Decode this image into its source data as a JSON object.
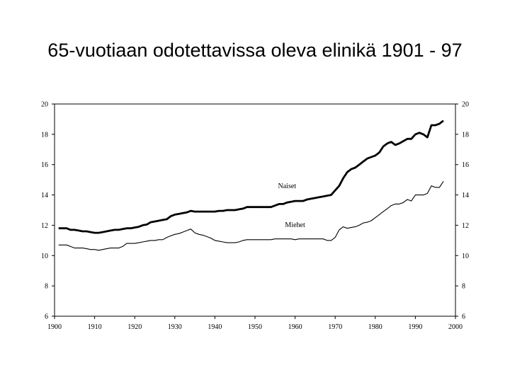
{
  "slide": {
    "title": "65-vuotiaan odotettavissa oleva elinikä 1901 - 97"
  },
  "chart_data": {
    "type": "line",
    "xlim": [
      1900,
      2000
    ],
    "ylim": [
      6,
      20
    ],
    "x_ticks": [
      1900,
      1910,
      1920,
      1930,
      1940,
      1950,
      1960,
      1970,
      1980,
      1990,
      2000
    ],
    "y_ticks": [
      6,
      8,
      10,
      12,
      14,
      16,
      18,
      20
    ],
    "grid": false,
    "series": [
      {
        "name": "Naiset",
        "color": "#000000",
        "weight": "bold",
        "x": [
          1901,
          1902,
          1903,
          1904,
          1905,
          1906,
          1907,
          1908,
          1909,
          1910,
          1911,
          1912,
          1913,
          1914,
          1915,
          1916,
          1917,
          1918,
          1919,
          1920,
          1921,
          1922,
          1923,
          1924,
          1925,
          1926,
          1927,
          1928,
          1929,
          1930,
          1931,
          1932,
          1933,
          1934,
          1935,
          1936,
          1937,
          1938,
          1939,
          1940,
          1941,
          1942,
          1943,
          1944,
          1945,
          1946,
          1947,
          1948,
          1949,
          1950,
          1951,
          1952,
          1953,
          1954,
          1955,
          1956,
          1957,
          1958,
          1959,
          1960,
          1961,
          1962,
          1963,
          1964,
          1965,
          1966,
          1967,
          1968,
          1969,
          1970,
          1971,
          1972,
          1973,
          1974,
          1975,
          1976,
          1977,
          1978,
          1979,
          1980,
          1981,
          1982,
          1983,
          1984,
          1985,
          1986,
          1987,
          1988,
          1989,
          1990,
          1991,
          1992,
          1993,
          1994,
          1995,
          1996,
          1997
        ],
        "y": [
          11.8,
          11.8,
          11.8,
          11.7,
          11.7,
          11.65,
          11.6,
          11.6,
          11.55,
          11.5,
          11.5,
          11.55,
          11.6,
          11.65,
          11.7,
          11.7,
          11.75,
          11.8,
          11.8,
          11.85,
          11.9,
          12.0,
          12.05,
          12.2,
          12.25,
          12.3,
          12.35,
          12.4,
          12.6,
          12.7,
          12.75,
          12.8,
          12.85,
          12.95,
          12.9,
          12.9,
          12.9,
          12.9,
          12.9,
          12.9,
          12.95,
          12.95,
          13.0,
          13.0,
          13.0,
          13.05,
          13.1,
          13.2,
          13.2,
          13.2,
          13.2,
          13.2,
          13.2,
          13.2,
          13.3,
          13.4,
          13.4,
          13.5,
          13.55,
          13.6,
          13.6,
          13.6,
          13.7,
          13.75,
          13.8,
          13.85,
          13.9,
          13.95,
          14.0,
          14.3,
          14.6,
          15.1,
          15.5,
          15.7,
          15.8,
          16.0,
          16.2,
          16.4,
          16.5,
          16.6,
          16.8,
          17.2,
          17.4,
          17.5,
          17.3,
          17.4,
          17.55,
          17.7,
          17.7,
          18.0,
          18.1,
          18.0,
          17.8,
          18.6,
          18.6,
          18.7,
          18.9
        ]
      },
      {
        "name": "Miehet",
        "color": "#000000",
        "weight": "thin",
        "x": [
          1901,
          1902,
          1903,
          1904,
          1905,
          1906,
          1907,
          1908,
          1909,
          1910,
          1911,
          1912,
          1913,
          1914,
          1915,
          1916,
          1917,
          1918,
          1919,
          1920,
          1921,
          1922,
          1923,
          1924,
          1925,
          1926,
          1927,
          1928,
          1929,
          1930,
          1931,
          1932,
          1933,
          1934,
          1935,
          1936,
          1937,
          1938,
          1939,
          1940,
          1941,
          1942,
          1943,
          1944,
          1945,
          1946,
          1947,
          1948,
          1949,
          1950,
          1951,
          1952,
          1953,
          1954,
          1955,
          1956,
          1957,
          1958,
          1959,
          1960,
          1961,
          1962,
          1963,
          1964,
          1965,
          1966,
          1967,
          1968,
          1969,
          1970,
          1971,
          1972,
          1973,
          1974,
          1975,
          1976,
          1977,
          1978,
          1979,
          1980,
          1981,
          1982,
          1983,
          1984,
          1985,
          1986,
          1987,
          1988,
          1989,
          1990,
          1991,
          1992,
          1993,
          1994,
          1995,
          1996,
          1997
        ],
        "y": [
          10.7,
          10.7,
          10.7,
          10.6,
          10.5,
          10.5,
          10.5,
          10.45,
          10.4,
          10.4,
          10.35,
          10.4,
          10.45,
          10.5,
          10.5,
          10.5,
          10.6,
          10.8,
          10.8,
          10.8,
          10.85,
          10.9,
          10.95,
          11.0,
          11.0,
          11.05,
          11.05,
          11.2,
          11.3,
          11.4,
          11.45,
          11.55,
          11.65,
          11.75,
          11.5,
          11.4,
          11.35,
          11.25,
          11.15,
          11.0,
          10.95,
          10.9,
          10.85,
          10.85,
          10.85,
          10.9,
          11.0,
          11.05,
          11.05,
          11.05,
          11.05,
          11.05,
          11.05,
          11.05,
          11.1,
          11.1,
          11.1,
          11.1,
          11.1,
          11.05,
          11.1,
          11.1,
          11.1,
          11.1,
          11.1,
          11.1,
          11.1,
          11.0,
          11.0,
          11.2,
          11.7,
          11.9,
          11.8,
          11.85,
          11.9,
          12.0,
          12.15,
          12.2,
          12.3,
          12.5,
          12.7,
          12.9,
          13.1,
          13.3,
          13.4,
          13.4,
          13.5,
          13.7,
          13.6,
          14.0,
          14.0,
          14.0,
          14.1,
          14.6,
          14.5,
          14.5,
          14.9
        ]
      }
    ],
    "annotations": [
      {
        "text": "Naiset",
        "x": 1958,
        "y": 14.6
      },
      {
        "text": "Miehet",
        "x": 1960,
        "y": 12.05
      }
    ]
  }
}
